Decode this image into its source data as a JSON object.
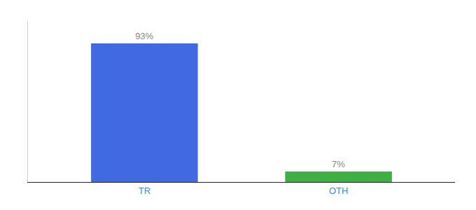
{
  "chart_data": {
    "type": "bar",
    "categories": [
      "TR",
      "OTH"
    ],
    "values": [
      93,
      7
    ],
    "value_labels": [
      "93%",
      "7%"
    ],
    "colors": [
      "#4169e1",
      "#3cb043"
    ],
    "data_labels": true,
    "ylim": [
      0,
      108
    ],
    "tick_labels": "x",
    "grid": false
  }
}
